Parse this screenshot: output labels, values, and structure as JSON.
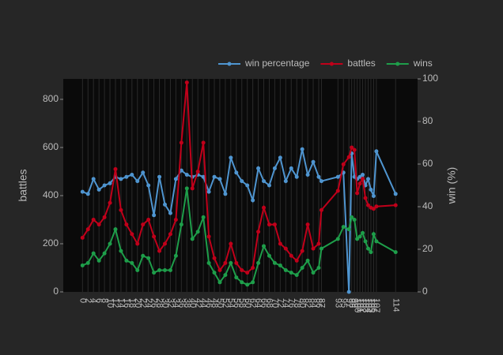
{
  "chart_data": {
    "type": "line",
    "y_label": "battles",
    "y2_label": "win (%)",
    "x": [
      0,
      2,
      4,
      6,
      8,
      10,
      12,
      14,
      16,
      18,
      20,
      22,
      24,
      26,
      28,
      30,
      32,
      34,
      36,
      38,
      40,
      42,
      44,
      46,
      48,
      50,
      52,
      54,
      56,
      58,
      60,
      62,
      64,
      66,
      68,
      70,
      72,
      74,
      76,
      78,
      80,
      82,
      84,
      86,
      87,
      93,
      95,
      97,
      98,
      99,
      100,
      101,
      102,
      103,
      104,
      105,
      106,
      107,
      114
    ],
    "xticks": [
      0,
      2,
      4,
      6,
      8,
      10,
      12,
      14,
      16,
      18,
      20,
      22,
      24,
      26,
      28,
      30,
      32,
      34,
      36,
      38,
      40,
      42,
      44,
      46,
      48,
      50,
      52,
      54,
      56,
      58,
      60,
      62,
      64,
      66,
      68,
      70,
      72,
      74,
      76,
      78,
      80,
      82,
      84,
      86,
      87,
      93,
      95,
      97,
      98,
      99,
      100,
      101,
      102,
      103,
      104,
      105,
      106,
      107,
      114
    ],
    "xlim": [
      -7,
      122
    ],
    "ylim": [
      0,
      885
    ],
    "yticks": [
      0,
      200,
      400,
      600,
      800
    ],
    "y2lim": [
      0,
      100
    ],
    "y2ticks": [
      0,
      20,
      40,
      60,
      80,
      100
    ],
    "grid": true,
    "legend": "top-right",
    "series": [
      {
        "name": "win percentage",
        "color": "#4f95d0",
        "axis": "y2",
        "values": [
          47,
          46,
          53,
          48,
          50,
          51,
          54,
          53,
          54,
          55,
          52,
          56,
          50,
          36,
          54,
          41,
          37,
          53,
          57,
          55,
          54,
          55,
          54,
          47,
          54,
          53,
          46,
          63,
          56,
          52,
          50,
          43,
          58,
          52,
          50,
          58,
          63,
          52,
          58,
          54,
          67,
          55,
          61,
          54,
          52,
          54,
          56,
          0,
          65,
          54,
          53,
          54,
          55,
          50,
          53,
          48,
          45,
          66,
          46
        ]
      },
      {
        "name": "battles",
        "color": "#c0001a",
        "values": [
          225,
          260,
          300,
          280,
          310,
          370,
          510,
          340,
          280,
          240,
          200,
          280,
          300,
          230,
          170,
          200,
          240,
          300,
          620,
          870,
          430,
          500,
          620,
          230,
          140,
          90,
          120,
          200,
          120,
          90,
          80,
          100,
          250,
          350,
          280,
          280,
          200,
          180,
          150,
          130,
          170,
          280,
          180,
          200,
          340,
          420,
          530,
          560,
          600,
          590,
          410,
          450,
          470,
          390,
          360,
          350,
          345,
          355,
          360
        ]
      },
      {
        "name": "wins",
        "color": "#1e9e4a",
        "values": [
          110,
          120,
          160,
          130,
          160,
          200,
          260,
          170,
          130,
          120,
          90,
          150,
          140,
          80,
          90,
          90,
          90,
          150,
          280,
          430,
          220,
          250,
          310,
          120,
          80,
          40,
          70,
          120,
          60,
          40,
          30,
          40,
          120,
          190,
          150,
          120,
          110,
          90,
          80,
          70,
          100,
          130,
          80,
          100,
          180,
          220,
          270,
          260,
          310,
          300,
          220,
          230,
          245,
          210,
          180,
          165,
          240,
          210,
          165
        ]
      }
    ]
  }
}
